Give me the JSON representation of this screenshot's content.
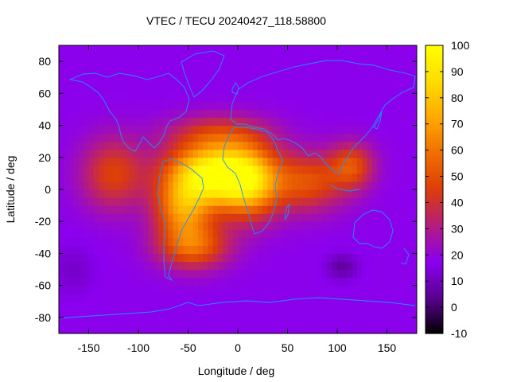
{
  "chart_data": {
    "type": "heatmap",
    "title": "VTEC / TECU 20240427_118.58800",
    "xlabel": "Longitude / deg",
    "ylabel": "Latitude / deg",
    "xlim": [
      -180,
      180
    ],
    "ylim": [
      -90,
      90
    ],
    "x_ticks": [
      -150,
      -100,
      -50,
      0,
      50,
      100,
      150
    ],
    "y_ticks": [
      -80,
      -60,
      -40,
      -20,
      0,
      20,
      40,
      60,
      80
    ],
    "colorbar": {
      "range": [
        -10,
        100
      ],
      "ticks": [
        -10,
        0,
        10,
        20,
        30,
        40,
        50,
        60,
        70,
        80,
        90,
        100
      ],
      "palette": [
        "#000000",
        "#5a0090",
        "#8a00f0",
        "#b41c80",
        "#dc3c0a",
        "#f06e00",
        "#ffa800",
        "#ffdc00",
        "#ffff00"
      ]
    },
    "background_level": 18,
    "features": [
      {
        "name": "equatorial-anomaly-peak-atlantic",
        "lon": -30,
        "lat": 10,
        "value": 95
      },
      {
        "name": "equatorial-anomaly-africa",
        "lon": 5,
        "lat": 8,
        "value": 92
      },
      {
        "name": "eastern-south-america",
        "lon": -50,
        "lat": -10,
        "value": 78
      },
      {
        "name": "southern-anomaly",
        "lon": -45,
        "lat": -35,
        "value": 58
      },
      {
        "name": "indian-ocean",
        "lon": 70,
        "lat": 5,
        "value": 55
      },
      {
        "name": "asia-maritime",
        "lon": 115,
        "lat": 15,
        "value": 50
      },
      {
        "name": "eastern-pacific",
        "lon": -130,
        "lat": 10,
        "value": 45
      },
      {
        "name": "southern-ocean-low",
        "lon": 105,
        "lat": -48,
        "value": 5
      }
    ]
  }
}
